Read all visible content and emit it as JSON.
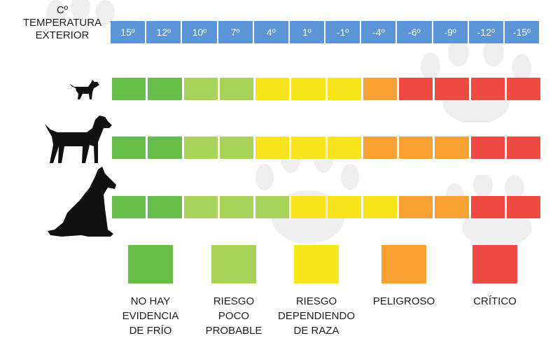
{
  "colors": {
    "green": "#66bd47",
    "light_green": "#a8d25a",
    "yellow": "#f9e51c",
    "orange": "#f8a033",
    "red": "#ee4a42",
    "temp_blue": "#5b95d7"
  },
  "header": {
    "unit_symbol": "Cº",
    "title_line1": "TEMPERATURA",
    "title_line2": "EXTERIOR"
  },
  "temperatures": [
    "15º",
    "12º",
    "10º",
    "7º",
    "4º",
    "1º",
    "-1º",
    "-4º",
    "-6º",
    "-9º",
    "-12º",
    "-15º"
  ],
  "dogs": [
    {
      "icon": "small-dog-icon",
      "risk": [
        "green",
        "green",
        "light_green",
        "light_green",
        "yellow",
        "yellow",
        "yellow",
        "orange",
        "red",
        "red",
        "red",
        "red"
      ]
    },
    {
      "icon": "medium-dog-icon",
      "risk": [
        "green",
        "green",
        "light_green",
        "light_green",
        "yellow",
        "yellow",
        "yellow",
        "orange",
        "orange",
        "orange",
        "red",
        "red"
      ]
    },
    {
      "icon": "large-dog-icon",
      "risk": [
        "green",
        "green",
        "light_green",
        "light_green",
        "light_green",
        "yellow",
        "yellow",
        "yellow",
        "orange",
        "orange",
        "red",
        "red"
      ]
    }
  ],
  "legend": [
    {
      "color": "green",
      "lines": [
        "NO HAY",
        "EVIDENCIA",
        "DE FRÍO"
      ]
    },
    {
      "color": "light_green",
      "lines": [
        "RIESGO",
        "POCO",
        "PROBABLE"
      ]
    },
    {
      "color": "yellow",
      "lines": [
        "RIESGO",
        "DEPENDIENDO",
        "DE RAZA"
      ]
    },
    {
      "color": "orange",
      "lines": [
        "PELIGROSO"
      ]
    },
    {
      "color": "red",
      "lines": [
        "CRÍTICO"
      ]
    }
  ]
}
